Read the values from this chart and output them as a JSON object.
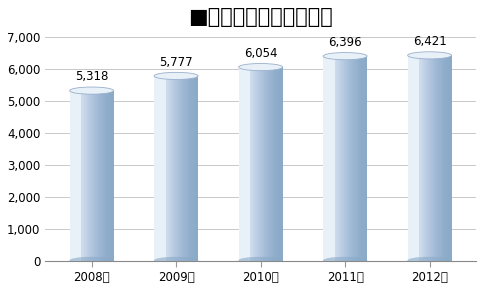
{
  "title": "■トラブル被害相談件数",
  "categories": [
    "2008年",
    "2009年",
    "2010年",
    "2011年",
    "2012年"
  ],
  "values": [
    5318,
    5777,
    6054,
    6396,
    6421
  ],
  "labels": [
    "5,318",
    "5,777",
    "6,054",
    "6,396",
    "6,421"
  ],
  "ylim": [
    0,
    7000
  ],
  "yticks": [
    0,
    1000,
    2000,
    3000,
    4000,
    5000,
    6000,
    7000
  ],
  "bar_color_left": "#dce8f4",
  "bar_color_mid": "#b0c4de",
  "bar_color_right": "#8aaac8",
  "bar_top_light": "#e8f0f8",
  "bar_top_dark": "#9ab0cc",
  "background_color": "#ffffff",
  "grid_color": "#c8c8c8",
  "title_fontsize": 15,
  "label_fontsize": 8.5,
  "tick_fontsize": 8.5
}
